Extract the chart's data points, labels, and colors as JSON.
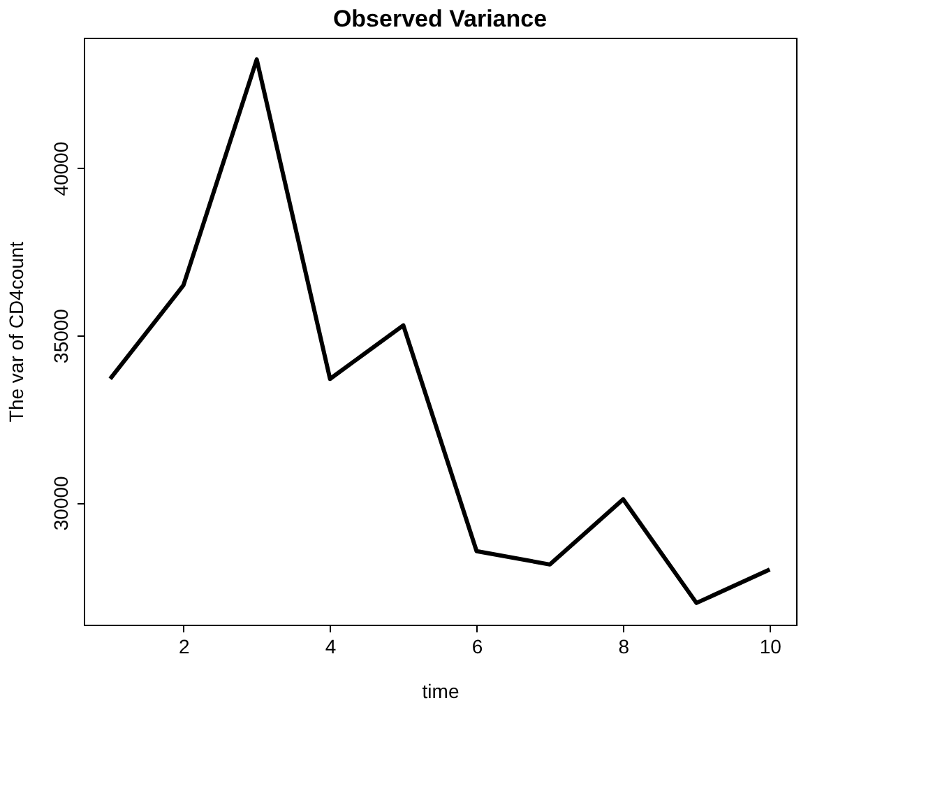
{
  "chart_data": {
    "type": "line",
    "title": "Observed Variance",
    "xlabel": "time",
    "ylabel": "The var of CD4count",
    "x": [
      1,
      2,
      3,
      4,
      5,
      6,
      7,
      8,
      9,
      10
    ],
    "series": [
      {
        "color": "#000000",
        "values": [
          33700,
          36500,
          43250,
          33700,
          35300,
          28550,
          28150,
          30100,
          27000,
          28000
        ]
      }
    ],
    "xlim": [
      0.64,
      10.36
    ],
    "ylim": [
      26350,
      43900
    ],
    "xticks": [
      2,
      4,
      6,
      8,
      10
    ],
    "yticks": [
      30000,
      35000,
      40000
    ],
    "grid": false,
    "marker": "none",
    "line_style": "solid"
  }
}
